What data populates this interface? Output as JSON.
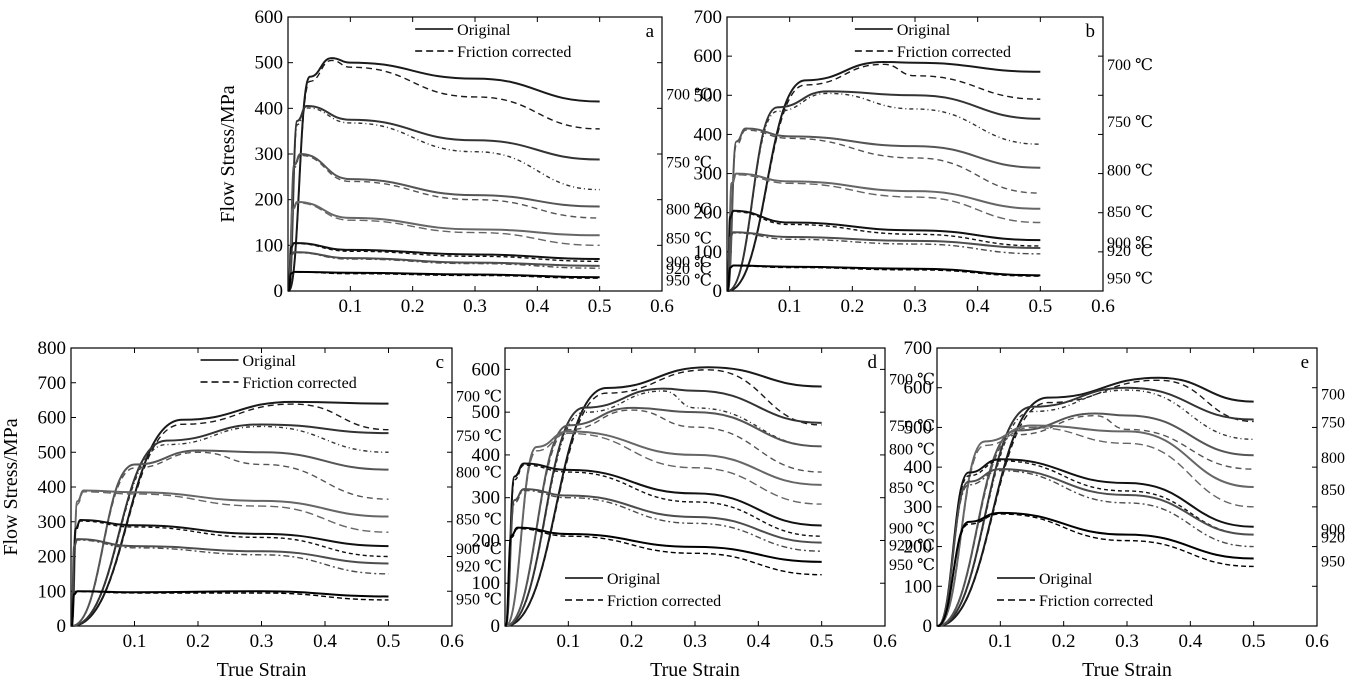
{
  "figure": {
    "common_legend": {
      "original": "Original",
      "corrected": "Friction corrected"
    },
    "ylabel": "Flow Stress/MPa",
    "xlabel": "True Strain"
  },
  "chart_data": [
    {
      "type": "line",
      "panel_label": "a",
      "xlim": [
        0,
        0.6
      ],
      "ylim": [
        0,
        600
      ],
      "xticks": [
        0.1,
        0.2,
        0.3,
        0.4,
        0.5,
        0.6
      ],
      "yticks": [
        0,
        100,
        200,
        300,
        400,
        500,
        600
      ],
      "ylabel": "Flow Stress/MPa",
      "xlabel": "",
      "legend": [
        "Original",
        "Friction corrected"
      ],
      "legend_position": "top-center",
      "series": [
        {
          "label": "700 ℃",
          "peak": [
            0.07,
            510
          ],
          "original": [
            500,
            465,
            415
          ],
          "corrected": [
            490,
            425,
            355
          ]
        },
        {
          "label": "750 ℃",
          "peak": [
            0.03,
            405
          ],
          "original": [
            375,
            330,
            288
          ],
          "corrected": [
            368,
            305,
            222
          ]
        },
        {
          "label": "800 ℃",
          "peak": [
            0.02,
            300
          ],
          "original": [
            245,
            210,
            185
          ],
          "corrected": [
            240,
            200,
            160
          ]
        },
        {
          "label": "850 ℃",
          "peak": [
            0.015,
            195
          ],
          "original": [
            160,
            135,
            122
          ],
          "corrected": [
            155,
            128,
            100
          ]
        },
        {
          "label": "900 ℃",
          "peak": [
            0.01,
            105
          ],
          "original": [
            90,
            80,
            70
          ],
          "corrected": [
            87,
            76,
            65
          ]
        },
        {
          "label": "920 ℃",
          "peak": [
            0.01,
            85
          ],
          "original": [
            72,
            62,
            55
          ],
          "corrected": [
            70,
            60,
            50
          ]
        },
        {
          "label": "950 ℃",
          "peak": [
            0.01,
            42
          ],
          "original": [
            40,
            36,
            30
          ],
          "corrected": [
            38,
            34,
            28
          ]
        }
      ]
    },
    {
      "type": "line",
      "panel_label": "b",
      "xlim": [
        0,
        0.6
      ],
      "ylim": [
        0,
        700
      ],
      "xticks": [
        0.1,
        0.2,
        0.3,
        0.4,
        0.5,
        0.6
      ],
      "yticks": [
        0,
        100,
        200,
        300,
        400,
        500,
        600,
        700
      ],
      "ylabel": "",
      "xlabel": "",
      "legend": [
        "Original",
        "Friction corrected"
      ],
      "legend_position": "top-center",
      "series": [
        {
          "label": "700 ℃",
          "peak": [
            0.25,
            585
          ],
          "original": [
            555,
            583,
            560
          ],
          "corrected": [
            545,
            550,
            490
          ]
        },
        {
          "label": "750 ℃",
          "peak": [
            0.16,
            510
          ],
          "original": [
            505,
            500,
            440
          ],
          "corrected": [
            490,
            465,
            375
          ]
        },
        {
          "label": "800 ℃",
          "peak": [
            0.03,
            415
          ],
          "original": [
            395,
            370,
            315
          ],
          "corrected": [
            390,
            340,
            250
          ]
        },
        {
          "label": "850 ℃",
          "peak": [
            0.015,
            300
          ],
          "original": [
            280,
            255,
            210
          ],
          "corrected": [
            275,
            240,
            175
          ]
        },
        {
          "label": "900 ℃",
          "peak": [
            0.01,
            205
          ],
          "original": [
            175,
            155,
            130
          ],
          "corrected": [
            170,
            145,
            115
          ]
        },
        {
          "label": "920 ℃",
          "peak": [
            0.01,
            150
          ],
          "original": [
            138,
            128,
            110
          ],
          "corrected": [
            132,
            120,
            95
          ]
        },
        {
          "label": "950 ℃",
          "peak": [
            0.01,
            65
          ],
          "original": [
            62,
            57,
            40
          ],
          "corrected": [
            60,
            54,
            38
          ]
        }
      ]
    },
    {
      "type": "line",
      "panel_label": "c",
      "xlim": [
        0,
        0.6
      ],
      "ylim": [
        0,
        800
      ],
      "xticks": [
        0.1,
        0.2,
        0.3,
        0.4,
        0.5,
        0.6
      ],
      "yticks": [
        0,
        100,
        200,
        300,
        400,
        500,
        600,
        700,
        800
      ],
      "ylabel": "Flow Stress/MPa",
      "xlabel": "True Strain",
      "legend": [
        "Original",
        "Friction corrected"
      ],
      "legend_position": "top-center",
      "series": [
        {
          "label": "700 ℃",
          "peak": [
            0.35,
            645
          ],
          "original": [
            570,
            640,
            640
          ],
          "corrected": [
            555,
            600,
            565
          ]
        },
        {
          "label": "750 ℃",
          "peak": [
            0.3,
            580
          ],
          "original": [
            535,
            575,
            555
          ],
          "corrected": [
            520,
            545,
            500
          ]
        },
        {
          "label": "800 ℃",
          "peak": [
            0.2,
            505
          ],
          "original": [
            495,
            500,
            450
          ],
          "corrected": [
            480,
            465,
            365
          ]
        },
        {
          "label": "850 ℃",
          "peak": [
            0.02,
            390
          ],
          "original": [
            385,
            360,
            315
          ],
          "corrected": [
            380,
            345,
            270
          ]
        },
        {
          "label": "900 ℃",
          "peak": [
            0.015,
            305
          ],
          "original": [
            290,
            265,
            230
          ],
          "corrected": [
            285,
            255,
            200
          ]
        },
        {
          "label": "920 ℃",
          "peak": [
            0.01,
            250
          ],
          "original": [
            230,
            215,
            180
          ],
          "corrected": [
            225,
            205,
            150
          ]
        },
        {
          "label": "950 ℃",
          "peak": [
            0.01,
            100
          ],
          "original": [
            97,
            100,
            85
          ],
          "corrected": [
            95,
            95,
            75
          ]
        }
      ]
    },
    {
      "type": "line",
      "panel_label": "d",
      "xlim": [
        0,
        0.6
      ],
      "ylim": [
        0,
        650
      ],
      "xticks": [
        0.1,
        0.2,
        0.3,
        0.4,
        0.5,
        0.6
      ],
      "yticks": [
        0,
        100,
        200,
        300,
        400,
        500,
        600
      ],
      "ylabel": "",
      "xlabel": "True Strain",
      "legend": [
        "Original",
        "Friction corrected"
      ],
      "legend_position": "bottom-left",
      "series": [
        {
          "label": "700 ℃",
          "peak": [
            0.32,
            605
          ],
          "original": [
            540,
            600,
            560
          ],
          "corrected": [
            525,
            560,
            470
          ]
        },
        {
          "label": "750 ℃",
          "peak": [
            0.25,
            555
          ],
          "original": [
            510,
            550,
            475
          ],
          "corrected": [
            495,
            510,
            420
          ]
        },
        {
          "label": "800 ℃",
          "peak": [
            0.2,
            510
          ],
          "original": [
            480,
            500,
            420
          ],
          "corrected": [
            465,
            465,
            360
          ]
        },
        {
          "label": "850 ℃",
          "peak": [
            0.1,
            455
          ],
          "original": [
            450,
            400,
            330
          ],
          "corrected": [
            440,
            370,
            285
          ]
        },
        {
          "label": "900 ℃",
          "peak": [
            0.03,
            380
          ],
          "original": [
            365,
            310,
            235
          ],
          "corrected": [
            360,
            290,
            210
          ]
        },
        {
          "label": "920 ℃",
          "peak": [
            0.03,
            320
          ],
          "original": [
            305,
            255,
            195
          ],
          "corrected": [
            300,
            240,
            175
          ]
        },
        {
          "label": "950 ℃",
          "peak": [
            0.02,
            230
          ],
          "original": [
            215,
            185,
            150
          ],
          "corrected": [
            210,
            170,
            120
          ]
        }
      ]
    },
    {
      "type": "line",
      "panel_label": "e",
      "xlim": [
        0,
        0.6
      ],
      "ylim": [
        0,
        700
      ],
      "xticks": [
        0.1,
        0.2,
        0.3,
        0.4,
        0.5,
        0.6
      ],
      "yticks": [
        0,
        100,
        200,
        300,
        400,
        500,
        600,
        700
      ],
      "ylabel": "",
      "xlabel": "True Strain",
      "legend": [
        "Original",
        "Friction corrected"
      ],
      "legend_position": "bottom-left",
      "series": [
        {
          "label": "700 ℃",
          "peak": [
            0.35,
            625
          ],
          "original": [
            555,
            615,
            565
          ],
          "corrected": [
            540,
            590,
            515
          ]
        },
        {
          "label": "750 ℃",
          "peak": [
            0.3,
            600
          ],
          "original": [
            535,
            595,
            520
          ],
          "corrected": [
            520,
            560,
            470
          ]
        },
        {
          "label": "800 ℃",
          "peak": [
            0.25,
            535
          ],
          "original": [
            500,
            530,
            430
          ],
          "corrected": [
            490,
            495,
            395
          ]
        },
        {
          "label": "850 ℃",
          "peak": [
            0.15,
            505
          ],
          "original": [
            490,
            490,
            350
          ],
          "corrected": [
            480,
            460,
            300
          ]
        },
        {
          "label": "900 ℃",
          "peak": [
            0.1,
            420
          ],
          "original": [
            415,
            360,
            250
          ],
          "corrected": [
            410,
            340,
            230
          ]
        },
        {
          "label": "920 ℃",
          "peak": [
            0.1,
            395
          ],
          "original": [
            390,
            330,
            230
          ],
          "corrected": [
            380,
            310,
            200
          ]
        },
        {
          "label": "950 ℃",
          "peak": [
            0.1,
            285
          ],
          "original": [
            280,
            230,
            170
          ],
          "corrected": [
            275,
            215,
            150
          ]
        }
      ]
    }
  ]
}
